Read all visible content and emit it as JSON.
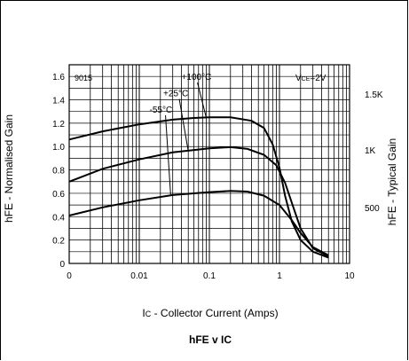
{
  "chart_data": {
    "type": "line",
    "device_label": "9015",
    "condition_label": "VCE=2V",
    "condition_main": "V",
    "condition_sub": "CE",
    "condition_rest": "=2V",
    "xlabel_prefix": "I",
    "xlabel_sub": "C",
    "xlabel_rest": " - Collector Current (Amps)",
    "ylabel_left": "hFE - Normalised Gain",
    "ylabel_right": "hFE - Typical Gain",
    "title_main": "hFE v I",
    "title_sub": "C",
    "x_scale": "log",
    "xlim": [
      0.001,
      10
    ],
    "ylim": [
      0,
      1.7
    ],
    "x_ticks": [
      {
        "value": 0.001,
        "label": "0"
      },
      {
        "value": 0.01,
        "label": "0.01"
      },
      {
        "value": 0.1,
        "label": "0.1"
      },
      {
        "value": 1,
        "label": "1"
      },
      {
        "value": 10,
        "label": "10"
      }
    ],
    "y_ticks": [
      {
        "value": 0,
        "label": "0"
      },
      {
        "value": 0.2,
        "label": "0.2"
      },
      {
        "value": 0.4,
        "label": "0.4"
      },
      {
        "value": 0.6,
        "label": "0.6"
      },
      {
        "value": 0.8,
        "label": "0.8"
      },
      {
        "value": 1.0,
        "label": "1.0"
      },
      {
        "value": 1.2,
        "label": "1.2"
      },
      {
        "value": 1.4,
        "label": "1.4"
      },
      {
        "value": 1.6,
        "label": "1.6"
      }
    ],
    "right_ticks": [
      {
        "value": 1.45,
        "label": "1.5K"
      },
      {
        "value": 0.97,
        "label": "1K"
      },
      {
        "value": 0.48,
        "label": "500"
      }
    ],
    "grid": true,
    "series": [
      {
        "name": "+100°C",
        "label_pos": [
          0.04,
          1.57
        ],
        "leader_to": [
          0.09,
          1.25
        ],
        "points": [
          [
            0.001,
            1.06
          ],
          [
            0.003,
            1.13
          ],
          [
            0.01,
            1.19
          ],
          [
            0.03,
            1.23
          ],
          [
            0.06,
            1.245
          ],
          [
            0.1,
            1.25
          ],
          [
            0.2,
            1.25
          ],
          [
            0.4,
            1.22
          ],
          [
            0.6,
            1.16
          ],
          [
            0.8,
            1.02
          ],
          [
            1.0,
            0.82
          ],
          [
            1.2,
            0.58
          ],
          [
            1.5,
            0.36
          ],
          [
            2,
            0.2
          ],
          [
            3,
            0.1
          ],
          [
            5,
            0.05
          ]
        ]
      },
      {
        "name": "+25°C",
        "label_pos": [
          0.022,
          1.43
        ],
        "leader_to": [
          0.05,
          0.96
        ],
        "points": [
          [
            0.001,
            0.7
          ],
          [
            0.003,
            0.81
          ],
          [
            0.01,
            0.89
          ],
          [
            0.03,
            0.95
          ],
          [
            0.1,
            0.985
          ],
          [
            0.2,
            0.995
          ],
          [
            0.35,
            0.98
          ],
          [
            0.6,
            0.93
          ],
          [
            0.9,
            0.84
          ],
          [
            1.2,
            0.69
          ],
          [
            1.6,
            0.47
          ],
          [
            2,
            0.3
          ],
          [
            3,
            0.13
          ],
          [
            5,
            0.06
          ]
        ]
      },
      {
        "name": "-55°C",
        "label_pos": [
          0.014,
          1.29
        ],
        "leader_to": [
          0.028,
          0.59
        ],
        "points": [
          [
            0.001,
            0.41
          ],
          [
            0.003,
            0.48
          ],
          [
            0.01,
            0.54
          ],
          [
            0.03,
            0.585
          ],
          [
            0.1,
            0.61
          ],
          [
            0.2,
            0.62
          ],
          [
            0.35,
            0.615
          ],
          [
            0.6,
            0.58
          ],
          [
            1.0,
            0.5
          ],
          [
            1.5,
            0.37
          ],
          [
            2,
            0.26
          ],
          [
            3,
            0.14
          ],
          [
            5,
            0.07
          ]
        ]
      }
    ]
  }
}
